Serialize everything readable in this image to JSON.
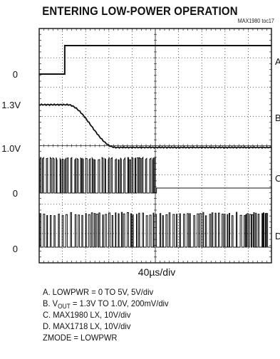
{
  "chart_data": {
    "type": "line",
    "title": "ENTERING LOW-POWER OPERATION",
    "plot_id": "MAX1980 toc17",
    "x_axis_label": "40µs/div",
    "grid": true,
    "divisions": {
      "x": 10,
      "y": 8
    },
    "y_labels": [
      {
        "text": "0",
        "channel": "A"
      },
      {
        "text": "1.3V",
        "channel": "B"
      },
      {
        "text": "1.0V",
        "channel": "B"
      },
      {
        "text": "0",
        "channel": "C"
      },
      {
        "text": "0",
        "channel": "D"
      }
    ],
    "series": [
      {
        "name": "A",
        "description": "LOWPWR = 0 TO 5V, 5V/div",
        "points": [
          [
            0,
            0
          ],
          [
            1.1,
            0
          ],
          [
            1.1,
            5
          ],
          [
            10,
            5
          ]
        ]
      },
      {
        "name": "B",
        "description": "VOUT = 1.3V TO 1.0V, 200mV/div",
        "points": [
          [
            0,
            1.3
          ],
          [
            1.2,
            1.3
          ],
          [
            2.4,
            1.15
          ],
          [
            3.3,
            1.0
          ],
          [
            10,
            1.0
          ]
        ]
      },
      {
        "name": "C",
        "description": "MAX1980 LX, 10V/div"
      },
      {
        "name": "D",
        "description": "MAX1718 LX, 10V/div"
      }
    ]
  },
  "legend": {
    "line_a": "A. LOWPWR = 0 TO 5V, 5V/div",
    "line_b_prefix": "B. V",
    "line_b_sub": "OUT",
    "line_b_suffix": " = 1.3V TO 1.0V, 200mV/div",
    "line_c": "C. MAX1980 LX, 10V/div",
    "line_d": "D. MAX1718 LX, 10V/div",
    "line_z": "ZMODE = LOWPWR"
  }
}
